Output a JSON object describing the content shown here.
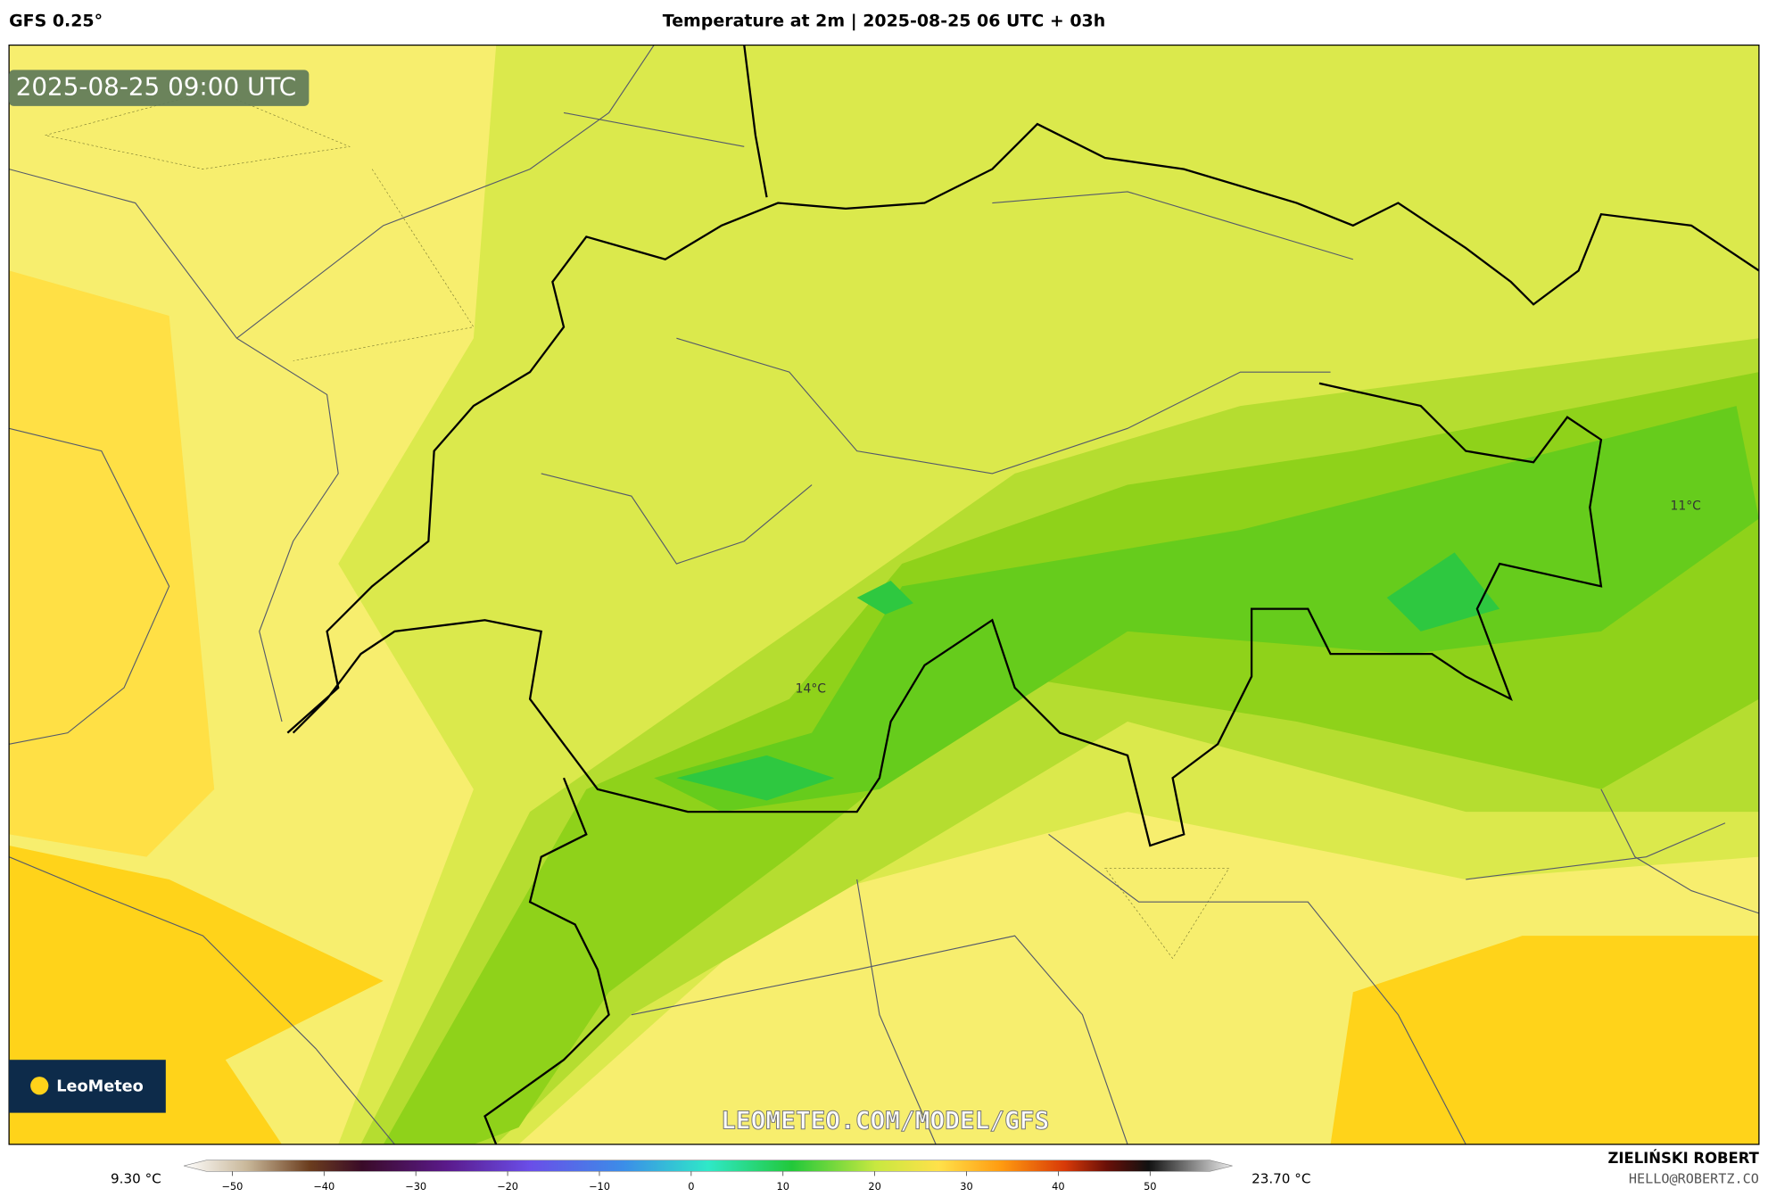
{
  "header": {
    "model": "GFS 0.25°",
    "title": "Temperature at 2m | 2025-08-25 06 UTC + 03h"
  },
  "map": {
    "timestamp": "2025-08-25 09:00 UTC",
    "watermark": "LEOMETEO.COM/MODEL/GFS",
    "logo": "LeoMeteo",
    "labels": [
      "14°C",
      "11°C"
    ]
  },
  "colorbar": {
    "min": "9.30 °C",
    "max": "23.70 °C",
    "ticks": [
      "−50",
      "−40",
      "−30",
      "−20",
      "−10",
      "0",
      "10",
      "20",
      "30",
      "40",
      "50"
    ]
  },
  "footer": {
    "author": "ZIELIŃSKI ROBERT",
    "email": "HELLO@ROBERTZ.CO"
  }
}
